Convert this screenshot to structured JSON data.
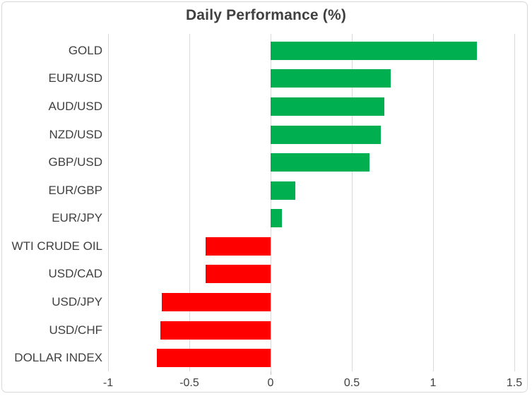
{
  "title": "Daily Performance (%)",
  "colors": {
    "positive": "#00B050",
    "negative": "#FF0000",
    "gridline": "#D9D9D9",
    "axis_tick": "#BFBFBF",
    "text": "#404040",
    "frame_border": "#D8D8D8",
    "background": "#FFFFFF"
  },
  "chart_data": {
    "type": "bar",
    "orientation": "horizontal",
    "title": "Daily Performance (%)",
    "categories": [
      "GOLD",
      "EUR/USD",
      "AUD/USD",
      "NZD/USD",
      "GBP/USD",
      "EUR/GBP",
      "EUR/JPY",
      "WTI CRUDE OIL",
      "USD/CAD",
      "USD/JPY",
      "USD/CHF",
      "DOLLAR INDEX"
    ],
    "values": [
      1.27,
      0.74,
      0.7,
      0.68,
      0.61,
      0.15,
      0.07,
      -0.4,
      -0.4,
      -0.67,
      -0.68,
      -0.7
    ],
    "xlabel": "",
    "ylabel": "",
    "xlim": [
      -1,
      1.5
    ],
    "xticks": [
      -1,
      -0.5,
      0,
      0.5,
      1,
      1.5
    ],
    "xtick_labels": [
      "-1",
      "-0.5",
      "0",
      "0.5",
      "1",
      "1.5"
    ],
    "grid": true,
    "legend": false,
    "bar_color_rule": "green if positive, red if negative"
  }
}
